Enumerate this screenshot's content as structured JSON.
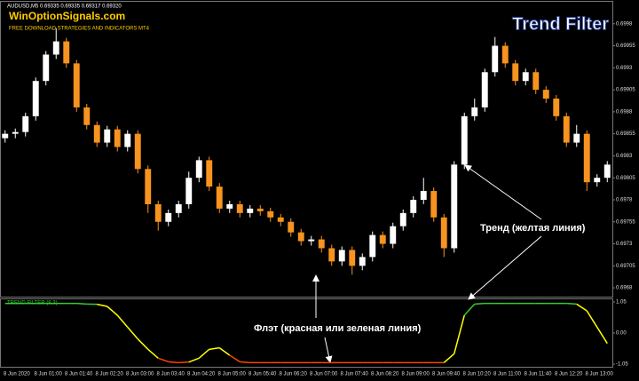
{
  "chart_data": [
    {
      "type": "candlestick",
      "symbol_info": "AUDUSD,M5  0.69335 0.69335 0.69317 0.69320",
      "brand": "WinOptionSignals.com",
      "brand_sub": "FREE DOWNLOAD STRATEGIES AND INDICATORS MT4",
      "title": "Trend Filter",
      "annotations": [
        "Тренд (желтая линия)",
        "Флэт (красная или зеленая линия)"
      ],
      "up_color": "#ffffff",
      "down_color": "#f7931e",
      "categories": [
        "8 Jun 2020",
        "8 Jun 01:00",
        "8 Jun 01:40",
        "8 Jun 02:20",
        "8 Jun 03:00",
        "8 Jun 03:40",
        "8 Jun 04:20",
        "8 Jun 05:00",
        "8 Jun 05:40",
        "8 Jun 06:20",
        "8 Jun 07:00",
        "8 Jun 07:40",
        "8 Jun 08:20",
        "8 Jun 09:00",
        "8 Jun 09:40",
        "8 Jun 10:20",
        "8 Jun 11:00",
        "8 Jun 11:40",
        "8 Jun 12:20",
        "8 Jun 13:00"
      ],
      "open": [
        0.6985,
        0.69855,
        0.69857,
        0.69875,
        0.69915,
        0.69945,
        0.6996,
        0.69935,
        0.69885,
        0.69865,
        0.69845,
        0.6986,
        0.6984,
        0.69855,
        0.69815,
        0.69775,
        0.69755,
        0.69765,
        0.69775,
        0.69805,
        0.69825,
        0.69795,
        0.6977,
        0.69775,
        0.69765,
        0.6977,
        0.69767,
        0.6976,
        0.69755,
        0.69743,
        0.69733,
        0.69735,
        0.69725,
        0.6971,
        0.69723,
        0.69705,
        0.69715,
        0.6974,
        0.6973,
        0.6975,
        0.69765,
        0.6978,
        0.6979,
        0.6976,
        0.69725,
        0.6982,
        0.69875,
        0.69885,
        0.69925,
        0.69955,
        0.69935,
        0.69915,
        0.69925,
        0.69905,
        0.69895,
        0.69875,
        0.69845,
        0.69855,
        0.698,
        0.69805
      ],
      "high": [
        0.69859,
        0.69861,
        0.69879,
        0.69919,
        0.69949,
        0.69975,
        0.69964,
        0.69939,
        0.69889,
        0.69869,
        0.69864,
        0.69864,
        0.69859,
        0.69859,
        0.69819,
        0.69779,
        0.69769,
        0.69779,
        0.69812,
        0.69829,
        0.69829,
        0.69799,
        0.69779,
        0.69779,
        0.69774,
        0.69774,
        0.69771,
        0.69764,
        0.69759,
        0.69747,
        0.69739,
        0.69739,
        0.69729,
        0.69727,
        0.69727,
        0.69719,
        0.69744,
        0.69744,
        0.69754,
        0.69769,
        0.69784,
        0.69805,
        0.69794,
        0.69764,
        0.69824,
        0.69879,
        0.69895,
        0.69929,
        0.69965,
        0.69959,
        0.69939,
        0.69929,
        0.69929,
        0.69909,
        0.69899,
        0.69879,
        0.69865,
        0.69859,
        0.69809,
        0.69824
      ],
      "low": [
        0.69845,
        0.6985,
        0.69852,
        0.6987,
        0.6991,
        0.6994,
        0.6993,
        0.6988,
        0.6986,
        0.6984,
        0.6984,
        0.69835,
        0.69835,
        0.6981,
        0.69765,
        0.69745,
        0.6975,
        0.6976,
        0.6977,
        0.698,
        0.6979,
        0.69765,
        0.69765,
        0.6976,
        0.6976,
        0.69762,
        0.69755,
        0.6975,
        0.69738,
        0.69728,
        0.69728,
        0.6972,
        0.69705,
        0.69705,
        0.69695,
        0.697,
        0.6971,
        0.69725,
        0.69725,
        0.69745,
        0.6976,
        0.69775,
        0.69755,
        0.69715,
        0.6972,
        0.69815,
        0.6987,
        0.6988,
        0.6992,
        0.6993,
        0.6991,
        0.6991,
        0.699,
        0.6989,
        0.6987,
        0.6984,
        0.6984,
        0.6979,
        0.69795,
        0.698
      ],
      "close": [
        0.69855,
        0.69857,
        0.69875,
        0.69915,
        0.69945,
        0.6996,
        0.69935,
        0.69885,
        0.69865,
        0.69845,
        0.6986,
        0.6984,
        0.69855,
        0.69815,
        0.69775,
        0.69755,
        0.69765,
        0.69775,
        0.69805,
        0.69825,
        0.69795,
        0.6977,
        0.69775,
        0.69765,
        0.6977,
        0.69767,
        0.6976,
        0.69755,
        0.69743,
        0.69733,
        0.69735,
        0.69725,
        0.6971,
        0.69723,
        0.69705,
        0.69715,
        0.6974,
        0.6973,
        0.6975,
        0.69765,
        0.6978,
        0.6979,
        0.6976,
        0.69725,
        0.6982,
        0.69875,
        0.69885,
        0.69925,
        0.69955,
        0.69935,
        0.69915,
        0.69925,
        0.69905,
        0.69895,
        0.69875,
        0.69845,
        0.69855,
        0.698,
        0.69805,
        0.6982
      ],
      "ylim": [
        0.6967,
        0.70005
      ],
      "yticks": [
        0.6998,
        0.69955,
        0.6993,
        0.69905,
        0.6988,
        0.69855,
        0.6983,
        0.69805,
        0.6978,
        0.69755,
        0.6973,
        0.69705,
        0.6968
      ]
    },
    {
      "type": "line",
      "title": "TREND FILTER (8,3)",
      "values": [
        1.0,
        1.0,
        1.0,
        1.0,
        1.0,
        1.0,
        1.0,
        1.0,
        0.98,
        0.97,
        0.9,
        0.6,
        0.2,
        -0.2,
        -0.55,
        -0.85,
        -0.97,
        -1.0,
        -0.98,
        -0.85,
        -0.55,
        -0.5,
        -0.75,
        -0.97,
        -1.0,
        -1.0,
        -1.0,
        -1.0,
        -1.0,
        -1.0,
        -1.0,
        -1.0,
        -1.0,
        -1.0,
        -1.0,
        -1.0,
        -1.0,
        -1.0,
        -1.0,
        -1.0,
        -1.0,
        -1.0,
        -1.0,
        -1.0,
        -0.7,
        0.6,
        0.98,
        1.0,
        1.0,
        1.0,
        1.0,
        1.0,
        1.0,
        1.0,
        1.0,
        1.0,
        0.98,
        0.75,
        0.2,
        -0.35
      ],
      "point_colors": [
        "#32cd32",
        "#32cd32",
        "#32cd32",
        "#32cd32",
        "#32cd32",
        "#32cd32",
        "#32cd32",
        "#32cd32",
        "#32cd32",
        "#32cd32",
        "#ffff00",
        "#ffff00",
        "#ffff00",
        "#ffff00",
        "#ffff00",
        "#ffff00",
        "#ff4500",
        "#ff4500",
        "#ff4500",
        "#ffff00",
        "#ffff00",
        "#ffff00",
        "#ffff00",
        "#ff4500",
        "#ff4500",
        "#ff4500",
        "#ff4500",
        "#ff4500",
        "#ff4500",
        "#ff4500",
        "#ff4500",
        "#ff4500",
        "#ff4500",
        "#ff4500",
        "#ff4500",
        "#ff4500",
        "#ff4500",
        "#ff4500",
        "#ff4500",
        "#ff4500",
        "#ff4500",
        "#ff4500",
        "#ff4500",
        "#ff4500",
        "#ffff00",
        "#ffff00",
        "#32cd32",
        "#32cd32",
        "#32cd32",
        "#32cd32",
        "#32cd32",
        "#32cd32",
        "#32cd32",
        "#32cd32",
        "#32cd32",
        "#32cd32",
        "#32cd32",
        "#ffff00",
        "#ffff00",
        "#ffff00"
      ],
      "ylim": [
        -1.05,
        1.05
      ],
      "yticks": [
        1.05,
        {
          "value": 0,
          "label": "0.00"
        },
        -1.05
      ]
    }
  ]
}
